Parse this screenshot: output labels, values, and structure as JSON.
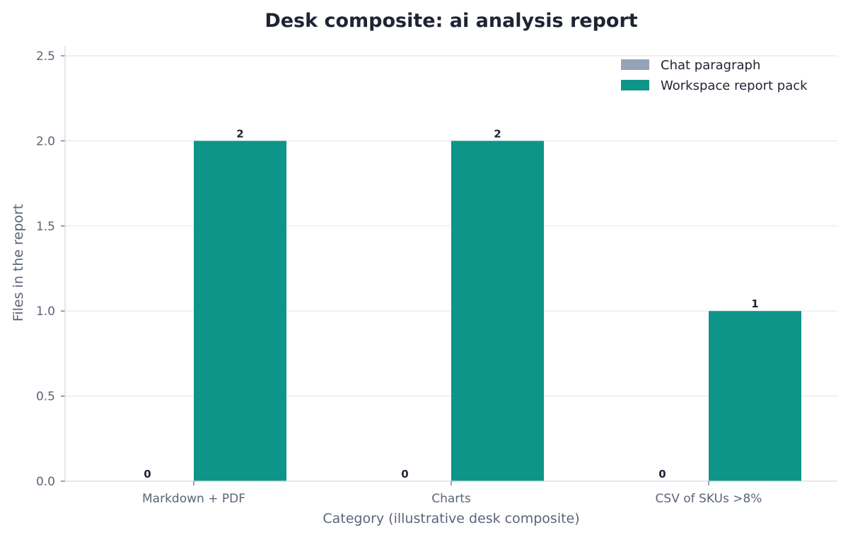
{
  "chart_data": {
    "type": "bar",
    "title": "Desk composite: ai analysis report",
    "xlabel": "Category (illustrative desk composite)",
    "ylabel": "Files in the report",
    "categories": [
      "Markdown + PDF",
      "Charts",
      "CSV of SKUs >8%"
    ],
    "series": [
      {
        "name": "Chat paragraph",
        "values": [
          0,
          0,
          0
        ],
        "color": "#94a3b8"
      },
      {
        "name": "Workspace report pack",
        "values": [
          2,
          2,
          1
        ],
        "color": "#0e9488"
      }
    ],
    "ylim": [
      0,
      2.5
    ],
    "yticks": [
      "0.0",
      "0.5",
      "1.0",
      "1.5",
      "2.0",
      "2.5"
    ],
    "ytick_values": [
      0,
      0.5,
      1.0,
      1.5,
      2.0,
      2.5
    ],
    "data_labels": [
      [
        "0",
        "0",
        "0"
      ],
      [
        "2",
        "2",
        "1"
      ]
    ],
    "grid": "y",
    "legend_position": "top-right"
  }
}
